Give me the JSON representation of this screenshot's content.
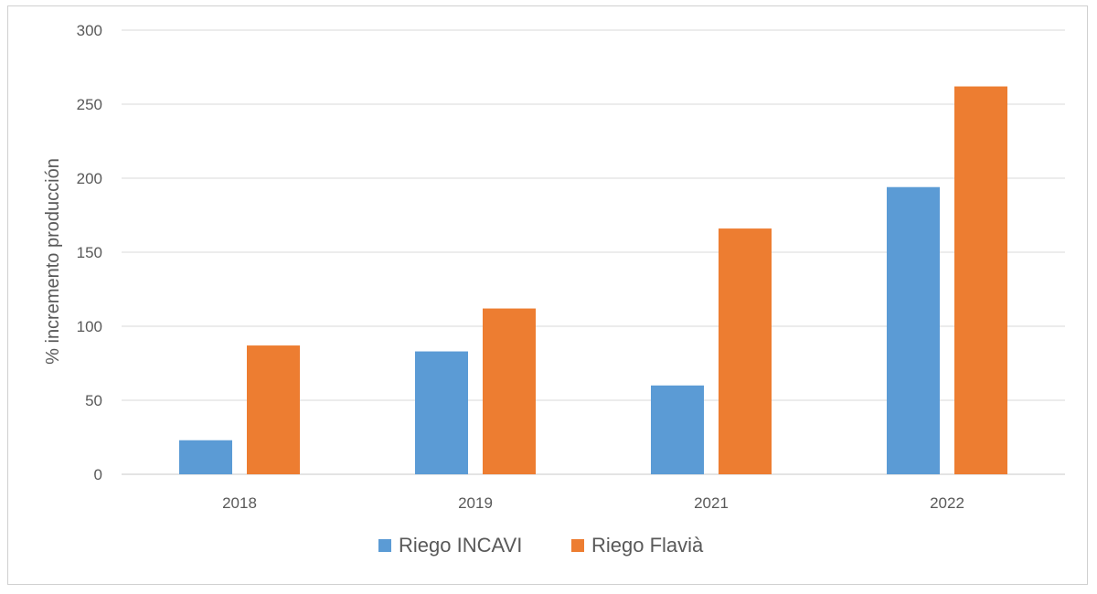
{
  "chart_data": {
    "type": "bar",
    "title": "",
    "xlabel": "",
    "ylabel": "% incremento producción",
    "ylim": [
      0,
      300
    ],
    "yticks": [
      0,
      50,
      100,
      150,
      200,
      250,
      300
    ],
    "grid": true,
    "legend_position": "bottom",
    "categories": [
      "2018",
      "2019",
      "2021",
      "2022"
    ],
    "series": [
      {
        "name": "Riego INCAVI",
        "color": "#5b9bd5",
        "values": [
          23,
          83,
          60,
          194
        ]
      },
      {
        "name": "Riego Flavià",
        "color": "#ed7d31",
        "values": [
          87,
          112,
          166,
          262
        ]
      }
    ]
  }
}
